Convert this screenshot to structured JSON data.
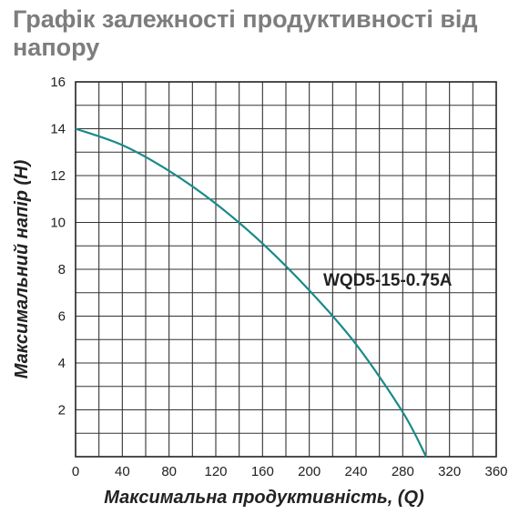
{
  "chart_data": {
    "type": "line",
    "title": "Графік залежності продуктивності від напору",
    "xlabel": "Максимальна продуктивність, (Q)",
    "ylabel": "Максимальний напір (Н)",
    "xlim": [
      0,
      360
    ],
    "ylim": [
      0,
      16
    ],
    "x_ticks": [
      "0",
      "40",
      "80",
      "120",
      "160",
      "200",
      "240",
      "280",
      "320",
      "360"
    ],
    "y_ticks": [
      "2",
      "4",
      "6",
      "8",
      "10",
      "12",
      "14",
      "16"
    ],
    "grid": true,
    "series": [
      {
        "name": "WQD5-15-0.75A",
        "color": "#1a8a8a",
        "x": [
          0,
          40,
          80,
          120,
          160,
          200,
          240,
          280,
          300
        ],
        "y": [
          14,
          13.3,
          12.2,
          10.8,
          9.1,
          7.1,
          4.8,
          1.9,
          0
        ]
      }
    ]
  }
}
